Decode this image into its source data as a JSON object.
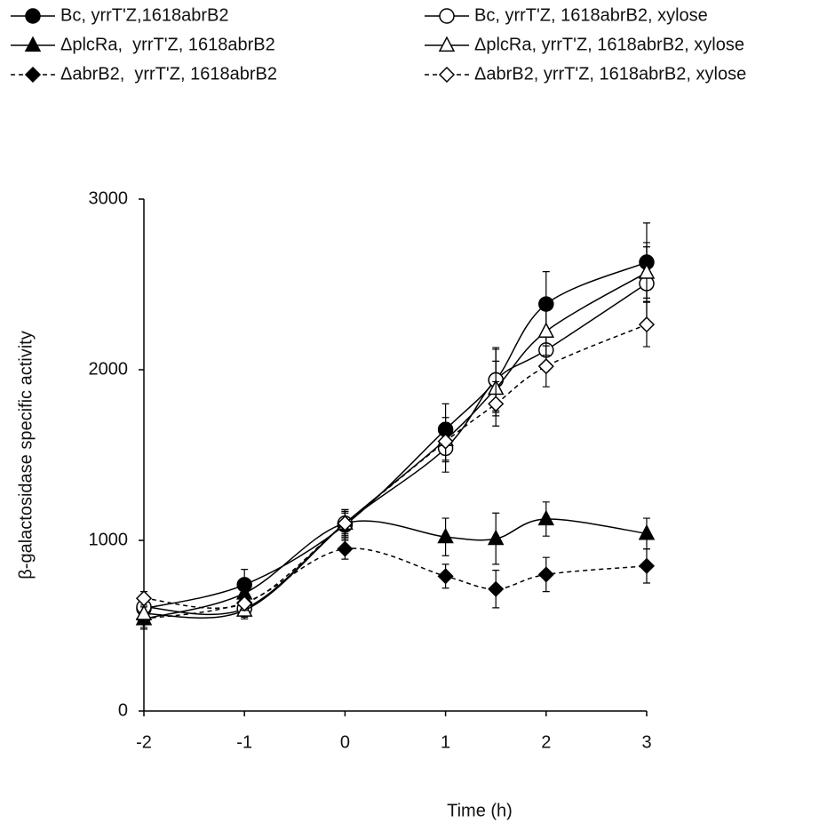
{
  "chart_data": {
    "type": "line",
    "x_label": "Time (h)",
    "y_label": "β-galactosidase specific activity",
    "x": [
      -2,
      -1,
      0,
      1,
      1.5,
      2,
      3
    ],
    "xlim": [
      -2,
      3
    ],
    "xticks": [
      -2,
      -1,
      0,
      1,
      2,
      3
    ],
    "ylim": [
      0,
      3000
    ],
    "yticks": [
      0,
      1000,
      2000,
      3000
    ],
    "grid": false,
    "smooth": true,
    "series": [
      {
        "name": "Bc, yrrT'Z,1618abrB2",
        "color": "#000000",
        "marker": "circle",
        "filled": true,
        "dashed": false,
        "values": [
          600,
          740,
          1090,
          1650,
          1940,
          2385,
          2630
        ],
        "errors": [
          60,
          90,
          90,
          150,
          190,
          190,
          230
        ]
      },
      {
        "name": "ΔplcRa,  yrrT'Z, 1618abrB2",
        "color": "#000000",
        "marker": "triangle",
        "filled": true,
        "dashed": false,
        "values": [
          540,
          690,
          1100,
          1020,
          1010,
          1125,
          1040
        ],
        "errors": [
          60,
          80,
          80,
          110,
          150,
          100,
          90
        ]
      },
      {
        "name": "ΔabrB2,  yrrT'Z, 1618abrB2",
        "color": "#000000",
        "marker": "diamond",
        "filled": true,
        "dashed": true,
        "values": [
          540,
          635,
          950,
          790,
          715,
          800,
          850
        ],
        "errors": [
          50,
          60,
          60,
          70,
          110,
          100,
          100
        ]
      },
      {
        "name": "Bc, yrrT'Z, 1618abrB2, xylose",
        "color": "#000000",
        "marker": "circle",
        "filled": false,
        "dashed": false,
        "values": [
          610,
          600,
          1100,
          1540,
          1940,
          2115,
          2505
        ],
        "errors": [
          40,
          50,
          80,
          140,
          180,
          120,
          240
        ]
      },
      {
        "name": "ΔplcRa, yrrT'Z, 1618abrB2, xylose",
        "color": "#000000",
        "marker": "triangle",
        "filled": false,
        "dashed": false,
        "values": [
          570,
          590,
          1100,
          1590,
          1890,
          2225,
          2570
        ],
        "errors": [
          40,
          50,
          60,
          130,
          160,
          140,
          150
        ]
      },
      {
        "name": "ΔabrB2, yrrT'Z, 1618abrB2, xylose",
        "color": "#000000",
        "marker": "diamond",
        "filled": false,
        "dashed": true,
        "values": [
          660,
          630,
          1100,
          1580,
          1800,
          2020,
          2265
        ],
        "errors": [
          40,
          40,
          70,
          110,
          130,
          120,
          130
        ]
      }
    ]
  }
}
